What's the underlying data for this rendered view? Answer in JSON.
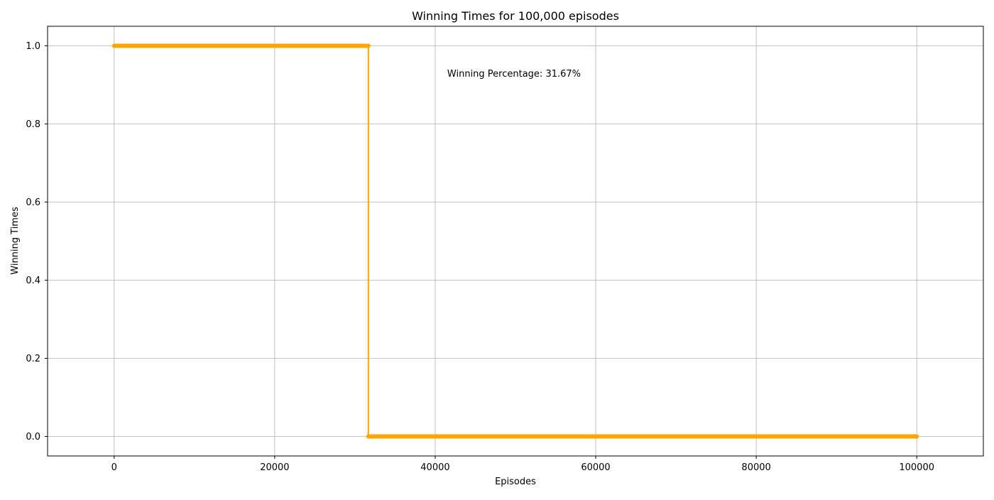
{
  "chart_data": {
    "type": "line",
    "title": "Winning Times for 100,000 episodes",
    "xlabel": "Episodes",
    "ylabel": "Winning Times",
    "xlim": [
      -8300,
      108300
    ],
    "ylim": [
      -0.05,
      1.05
    ],
    "xticks": [
      0,
      20000,
      40000,
      60000,
      80000,
      100000
    ],
    "xtick_labels": [
      "0",
      "20000",
      "40000",
      "60000",
      "80000",
      "100000"
    ],
    "yticks": [
      0.0,
      0.2,
      0.4,
      0.6,
      0.8,
      1.0
    ],
    "ytick_labels": [
      "0.0",
      "0.2",
      "0.4",
      "0.6",
      "0.8",
      "1.0"
    ],
    "grid": true,
    "series": [
      {
        "color": "#ffa500",
        "x": [
          0,
          31670,
          31670,
          100000
        ],
        "y": [
          1,
          1,
          0,
          0
        ],
        "marker_runs": [
          {
            "x_from": 0,
            "x_to": 31670,
            "y": 1
          },
          {
            "x_from": 31670,
            "x_to": 100000,
            "y": 0
          }
        ]
      }
    ],
    "annotations": [
      {
        "text": "Winning Percentage: 31.67%",
        "x": 41500,
        "y": 0.93
      }
    ]
  }
}
